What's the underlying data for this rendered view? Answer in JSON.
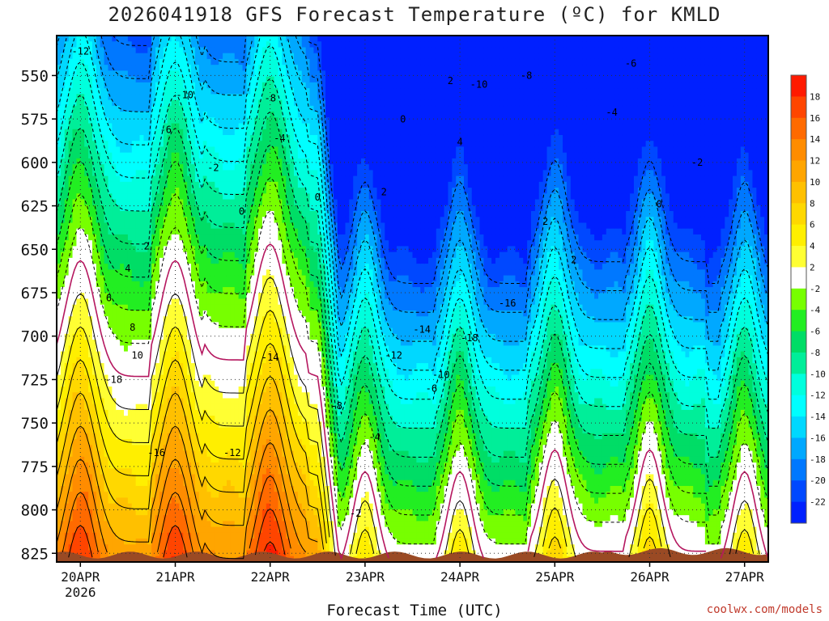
{
  "title": "2026041918 GFS Forecast Temperature (ºC) for KMLD",
  "credit": "coolwx.com/models",
  "chart_data": {
    "type": "heatmap",
    "title": "2026041918 GFS Forecast Temperature (ºC) for KMLD",
    "xlabel": "Forecast Time (UTC)",
    "ylabel": "",
    "x_ticks": [
      "20APR",
      "21APR",
      "22APR",
      "23APR",
      "24APR",
      "25APR",
      "26APR",
      "27APR"
    ],
    "x_first_sublabel": "2026",
    "y_ticks": [
      550,
      575,
      600,
      625,
      650,
      675,
      700,
      725,
      750,
      775,
      800,
      825
    ],
    "y_range_hPa": [
      830,
      527
    ],
    "x_range_days": [
      -0.25,
      7.25
    ],
    "grid": "dotted",
    "colorbar": {
      "ticks": [
        18,
        16,
        14,
        12,
        10,
        8,
        6,
        4,
        2,
        -2,
        -4,
        -6,
        -8,
        -10,
        -12,
        -14,
        -16,
        -18,
        -20,
        -22
      ],
      "colors": [
        "#ff1a00",
        "#ff4500",
        "#ff6a00",
        "#ff8c00",
        "#ffa500",
        "#ffc000",
        "#ffd800",
        "#ffef00",
        "#ffff33",
        "#ffffff",
        "#77ff00",
        "#22ee22",
        "#00dd66",
        "#00ee99",
        "#00ffdd",
        "#00ffff",
        "#00d8ff",
        "#00a8ff",
        "#0078ff",
        "#0048ff",
        "#0020ff"
      ]
    },
    "contour_labels": [
      "-12",
      "-10",
      "-8",
      "-6",
      "-4",
      "-2",
      "0",
      "2",
      "4",
      "6",
      "8",
      "10",
      "-18",
      "-16",
      "-14",
      "-12",
      "-10",
      "-8",
      "-6",
      "-4",
      "-2",
      "0",
      "2",
      "-18",
      "-16",
      "-14",
      "-12",
      "-10",
      "-8",
      "-6",
      "-4",
      "-2",
      "0",
      "2",
      "4",
      "2",
      "0",
      "2"
    ]
  }
}
